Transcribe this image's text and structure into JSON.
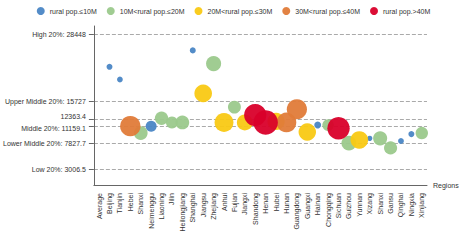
{
  "chart_data": {
    "type": "scatter",
    "x_label": "Regions",
    "categories": [
      "Average",
      "Beijing",
      "Tianjin",
      "Hebei",
      "Shanxi",
      "Neimenggu",
      "Liaoning",
      "Jilin",
      "Heilongjiang",
      "Shanghai",
      "Jiangsu",
      "Zhejiang",
      "Anhui",
      "Fujian",
      "Jiangxi",
      "Shandong",
      "Henan",
      "Hubei",
      "Hunan",
      "Guangdong",
      "Guangxi",
      "Hainan",
      "Chongqing",
      "Sichuan",
      "Guizhou",
      "Yunnan",
      "Xizang",
      "Shanxi",
      "Gansu",
      "Qinghai",
      "Ningxia",
      "Xinjiang"
    ],
    "ylim": [
      0,
      30000
    ],
    "yticks": [
      {
        "value": 3006.5,
        "label": "Low 20%: 3006.5"
      },
      {
        "value": 7827.7,
        "label": "Lower Middle 20%: 7827.7"
      },
      {
        "value": 11159.1,
        "label": "Middle 20%: 11159.1"
      },
      12363.4,
      {
        "value": 15727,
        "label": "Upper Middle 20%: 15727"
      },
      {
        "value": 28448,
        "label": "High 20%: 28448"
      }
    ],
    "grid": true,
    "legend": "top",
    "marker": "circle",
    "series": [
      {
        "name": "rural pop.≤10M",
        "color": "#4a86c5",
        "values": [
          null,
          22300,
          19900,
          null,
          null,
          11100,
          null,
          null,
          null,
          25400,
          null,
          null,
          null,
          null,
          null,
          null,
          null,
          null,
          null,
          null,
          null,
          11300,
          null,
          null,
          null,
          null,
          8800,
          null,
          null,
          8300,
          9600,
          null
        ],
        "sizes": [
          null,
          2.9,
          2.7,
          null,
          null,
          9.8,
          null,
          null,
          null,
          2.9,
          null,
          null,
          null,
          null,
          null,
          null,
          null,
          null,
          null,
          null,
          null,
          3.9,
          null,
          null,
          null,
          null,
          2.3,
          null,
          null,
          2.8,
          2.9,
          null
        ]
      },
      {
        "name": "10M<rural pop.≤20M",
        "color": "#9bc98c",
        "values": [
          null,
          null,
          null,
          null,
          9800,
          null,
          12600,
          11800,
          11800,
          null,
          null,
          22900,
          null,
          14700,
          null,
          null,
          null,
          null,
          null,
          null,
          null,
          null,
          11300,
          null,
          7900,
          null,
          null,
          8800,
          7000,
          null,
          null,
          9800
        ],
        "sizes": [
          null,
          null,
          null,
          null,
          15.5,
          null,
          14.6,
          11.8,
          15.3,
          null,
          null,
          18.5,
          null,
          13.6,
          null,
          null,
          null,
          null,
          null,
          null,
          null,
          null,
          11.0,
          null,
          18.3,
          null,
          null,
          16.2,
          14.0,
          null,
          null,
          12.6
        ]
      },
      {
        "name": "20M<rural pop.≤30M",
        "color": "#f9c914",
        "values": [
          null,
          null,
          null,
          null,
          null,
          null,
          null,
          null,
          null,
          null,
          17300,
          null,
          11800,
          null,
          11800,
          null,
          null,
          12000,
          null,
          null,
          10000,
          null,
          null,
          null,
          null,
          8500,
          null,
          null,
          null,
          null,
          null,
          null
        ],
        "sizes": [
          null,
          null,
          null,
          null,
          null,
          null,
          null,
          null,
          null,
          null,
          25.4,
          null,
          29.0,
          null,
          20.7,
          null,
          null,
          24.5,
          null,
          null,
          24.9,
          null,
          null,
          null,
          null,
          25.4,
          null,
          null,
          null,
          null,
          null,
          null
        ]
      },
      {
        "name": "30M<rural pop.≤40M",
        "color": "#e07b39",
        "values": [
          null,
          null,
          null,
          11100,
          null,
          null,
          null,
          null,
          null,
          null,
          null,
          null,
          null,
          null,
          null,
          null,
          null,
          null,
          11800,
          14300,
          null,
          null,
          null,
          null,
          null,
          null,
          null,
          null,
          null,
          null,
          null,
          null
        ],
        "sizes": [
          null,
          null,
          null,
          34.0,
          null,
          null,
          null,
          null,
          null,
          null,
          null,
          null,
          null,
          null,
          null,
          null,
          null,
          null,
          31.6,
          33.2,
          null,
          null,
          null,
          null,
          null,
          null,
          null,
          null,
          null,
          null,
          null,
          null
        ]
      },
      {
        "name": "rural pop.>40M",
        "color": "#d9002a",
        "values": [
          null,
          null,
          null,
          null,
          null,
          null,
          null,
          null,
          null,
          null,
          null,
          null,
          null,
          null,
          null,
          13200,
          11800,
          null,
          null,
          null,
          null,
          null,
          null,
          10700,
          null,
          null,
          null,
          null,
          null,
          null,
          null,
          null
        ],
        "sizes": [
          null,
          null,
          null,
          null,
          null,
          null,
          null,
          null,
          null,
          null,
          null,
          null,
          null,
          null,
          null,
          40.6,
          48.8,
          null,
          null,
          null,
          null,
          null,
          null,
          40.9,
          null,
          null,
          null,
          null,
          null,
          null,
          null,
          null
        ]
      }
    ]
  }
}
